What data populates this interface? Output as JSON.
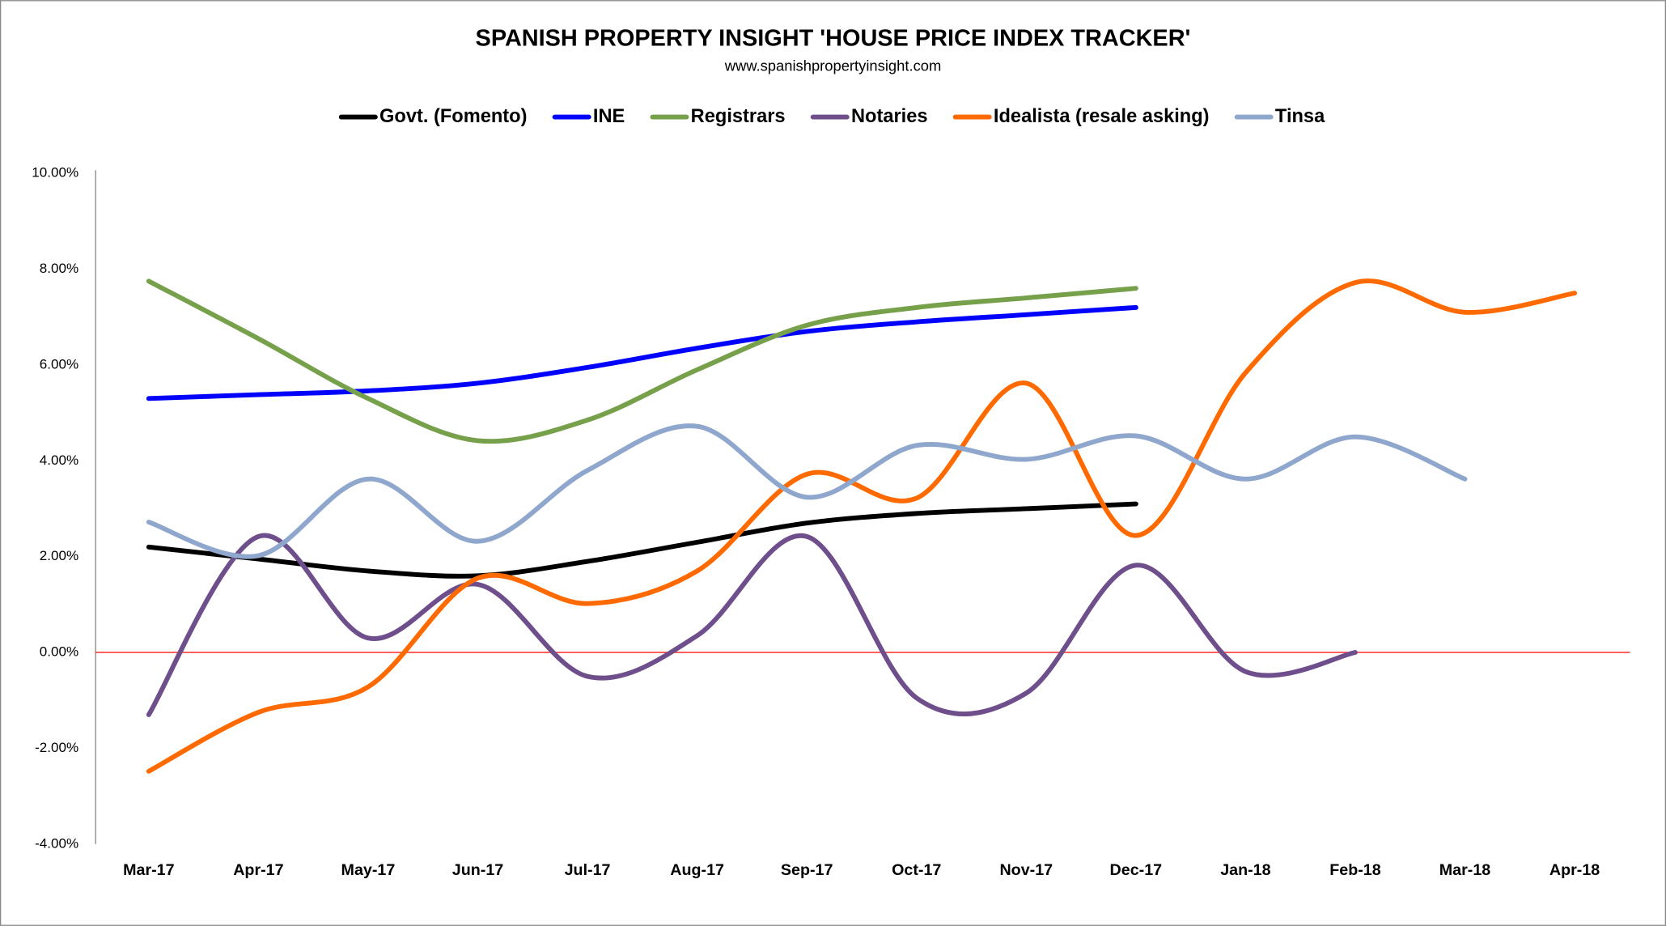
{
  "chart_data": {
    "type": "line",
    "title": "SPANISH PROPERTY INSIGHT 'HOUSE PRICE INDEX TRACKER'",
    "subtitle": "www.spanishpropertyinsight.com",
    "categories": [
      "Mar-17",
      "Apr-17",
      "May-17",
      "Jun-17",
      "Jul-17",
      "Aug-17",
      "Sep-17",
      "Oct-17",
      "Nov-17",
      "Dec-17",
      "Jan-18",
      "Feb-18",
      "Mar-18",
      "Apr-18"
    ],
    "series": [
      {
        "name": "Govt. (Fomento)",
        "color": "#000000",
        "values": [
          2.2,
          1.95,
          1.7,
          1.6,
          1.9,
          2.3,
          2.7,
          2.9,
          3.0,
          3.1,
          null,
          null,
          null,
          null
        ]
      },
      {
        "name": "INE",
        "color": "#0000ff",
        "values": [
          5.3,
          5.38,
          5.46,
          5.62,
          5.95,
          6.35,
          6.7,
          6.9,
          7.05,
          7.2,
          null,
          null,
          null,
          null
        ]
      },
      {
        "name": "Registrars",
        "color": "#77a04b",
        "values": [
          7.75,
          6.55,
          5.3,
          4.42,
          4.85,
          5.9,
          6.83,
          7.2,
          7.4,
          7.6,
          null,
          null,
          null,
          null
        ]
      },
      {
        "name": "Notaries",
        "color": "#6e4f8c",
        "values": [
          -1.3,
          2.42,
          0.3,
          1.42,
          -0.5,
          0.35,
          2.42,
          -0.95,
          -0.85,
          1.82,
          -0.4,
          0.0,
          null,
          null
        ]
      },
      {
        "name": "Idealista (resale asking)",
        "color": "#ff6a00",
        "values": [
          -2.48,
          -1.25,
          -0.72,
          1.55,
          1.02,
          1.7,
          3.72,
          3.22,
          5.62,
          2.44,
          5.84,
          7.72,
          7.1,
          7.5
        ]
      },
      {
        "name": "Tinsa",
        "color": "#8fa7cc",
        "values": [
          2.72,
          2.02,
          3.62,
          2.32,
          3.8,
          4.72,
          3.24,
          4.32,
          4.03,
          4.52,
          3.62,
          4.5,
          3.62,
          null
        ]
      }
    ],
    "ylim": [
      -4,
      10
    ],
    "yticks": [
      {
        "value": -4,
        "label": "-4.00%"
      },
      {
        "value": -2,
        "label": "-2.00%"
      },
      {
        "value": 0,
        "label": "0.00%"
      },
      {
        "value": 2,
        "label": "2.00%"
      },
      {
        "value": 4,
        "label": "4.00%"
      },
      {
        "value": 6,
        "label": "6.00%"
      },
      {
        "value": 8,
        "label": "8.00%"
      },
      {
        "value": 10,
        "label": "10.00%"
      }
    ],
    "zero_line_color": "#ff0000",
    "legend": "top"
  }
}
